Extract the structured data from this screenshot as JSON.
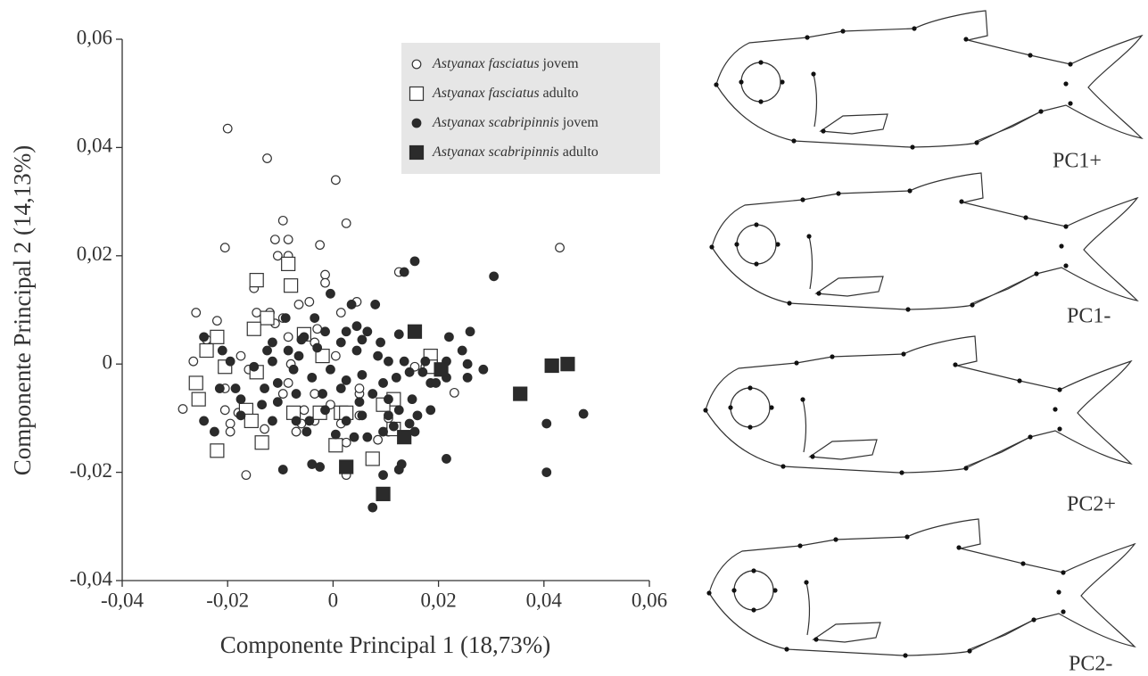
{
  "chart_data": {
    "type": "scatter",
    "xlabel": "Componente Principal 1 (18,73%)",
    "ylabel": "Componente Principal 2 (14,13%)",
    "xlim": [
      -0.04,
      0.06
    ],
    "ylim": [
      -0.04,
      0.06
    ],
    "xticks": [
      {
        "value": -0.04,
        "label": "-0,04"
      },
      {
        "value": -0.02,
        "label": "-0,02"
      },
      0,
      {
        "value": 0.02,
        "label": "0,02"
      },
      {
        "value": 0.04,
        "label": "0,04"
      },
      {
        "value": 0.06,
        "label": "0,06"
      }
    ],
    "yticks": [
      {
        "value": -0.04,
        "label": "-0,04"
      },
      {
        "value": -0.02,
        "label": "-0,02"
      },
      0,
      {
        "value": 0.02,
        "label": "0,02"
      },
      {
        "value": 0.04,
        "label": "0,04"
      },
      {
        "value": 0.06,
        "label": "0,06"
      }
    ],
    "legend": "upper right",
    "series": [
      {
        "name": "Astyanax fasciatus jovem",
        "marker": "circle",
        "color": "#ffffff",
        "edgecolor": "#333333",
        "x": [
          -0.02,
          -0.0125,
          0.0005,
          0.0025,
          -0.0095,
          -0.0205,
          -0.011,
          -0.0085,
          -0.0105,
          -0.0085,
          -0.0025,
          0.043,
          0.0125,
          -0.0015,
          -0.0015,
          -0.015,
          -0.0065,
          0.0045,
          -0.026,
          -0.0145,
          -0.012,
          -0.022,
          -0.0095,
          -0.0045,
          -0.011,
          0.0015,
          -0.003,
          -0.024,
          -0.0175,
          -0.0265,
          -0.0085,
          -0.0035,
          0.0005,
          -0.008,
          -0.016,
          -0.0085,
          -0.0095,
          -0.0035,
          0.005,
          -0.0285,
          -0.0205,
          -0.018,
          -0.0055,
          0.005,
          -0.006,
          -0.0035,
          -0.0195,
          -0.0195,
          -0.007,
          0.0015,
          -0.013,
          0.0025,
          -0.0165,
          0.0025,
          0.0085,
          0.0105,
          0.0175,
          0.023,
          0.005,
          -0.0005,
          0.0105,
          -0.0205,
          0.0155
        ],
        "values": [
          0.0435,
          0.038,
          0.034,
          0.026,
          0.0265,
          0.0215,
          0.023,
          0.023,
          0.02,
          0.02,
          0.022,
          0.0215,
          0.017,
          0.0165,
          0.015,
          0.014,
          0.011,
          0.0115,
          0.0095,
          0.0095,
          0.0095,
          0.008,
          0.0085,
          0.0115,
          0.0075,
          0.0095,
          0.0065,
          0.0045,
          0.0015,
          0.0005,
          0.005,
          0.004,
          0.0015,
          0,
          -0.001,
          -0.0035,
          -0.0055,
          -0.0055,
          -0.0055,
          -0.0083,
          -0.0085,
          -0.009,
          -0.0085,
          -0.0095,
          -0.011,
          -0.0105,
          -0.011,
          -0.0125,
          -0.0125,
          -0.011,
          -0.012,
          -0.0145,
          -0.0205,
          -0.0205,
          -0.014,
          -0.01,
          -0.0005,
          -0.0053,
          -0.0045,
          -0.0075,
          -0.0125,
          -0.0045,
          -0.0005
        ]
      },
      {
        "name": "Astyanax fasciatus adulto",
        "marker": "square",
        "color": "#ffffff",
        "edgecolor": "#333333",
        "x": [
          -0.0085,
          -0.0145,
          -0.008,
          -0.0125,
          -0.015,
          -0.0055,
          -0.022,
          -0.024,
          -0.002,
          -0.0205,
          -0.0145,
          -0.026,
          -0.0255,
          -0.0165,
          -0.0075,
          -0.0025,
          0.0015,
          0.0025,
          -0.0155,
          0.0115,
          0.0095,
          -0.0135,
          0.0005,
          -0.022,
          0.0075,
          0.0115,
          0.0185,
          0.0185
        ],
        "values": [
          0.0185,
          0.0155,
          0.0145,
          0.0085,
          0.0065,
          0.0055,
          0.005,
          0.0025,
          0.0015,
          -0.0005,
          -0.0015,
          -0.0035,
          -0.0065,
          -0.0085,
          -0.009,
          -0.009,
          -0.009,
          -0.009,
          -0.0105,
          -0.0065,
          -0.0075,
          -0.0145,
          -0.015,
          -0.016,
          -0.0175,
          -0.012,
          0.0015,
          -0.0005
        ]
      },
      {
        "name": "Astyanax scabripinnis jovem",
        "marker": "circle",
        "color": "#2b2b2b",
        "edgecolor": "#2b2b2b",
        "x": [
          0.0155,
          0.0305,
          0.0135,
          -0.0005,
          0.008,
          0.0035,
          0.0045,
          0.0025,
          0.0065,
          0.0055,
          0.0125,
          0.009,
          0.0015,
          -0.0035,
          -0.0055,
          -0.009,
          -0.0115,
          -0.006,
          -0.0015,
          -0.0065,
          -0.0085,
          -0.0125,
          -0.0115,
          -0.015,
          -0.0195,
          -0.0245,
          -0.021,
          -0.003,
          0.0045,
          0.0085,
          0.0105,
          0.0135,
          0.0175,
          0.0215,
          0.0245,
          0.026,
          0.022,
          0.0255,
          0.0285,
          0.0255,
          0.0215,
          0.0185,
          0.017,
          0.0145,
          0.012,
          0.0095,
          0.0055,
          0.0025,
          -0.0005,
          -0.004,
          -0.0075,
          -0.0105,
          -0.013,
          -0.0185,
          -0.0215,
          -0.0175,
          -0.0135,
          -0.0105,
          -0.007,
          -0.002,
          0.0015,
          0.005,
          0.0075,
          0.0105,
          0.015,
          0.0195,
          0.0185,
          0.016,
          0.0125,
          0.0105,
          0.0055,
          0.0025,
          -0.0015,
          -0.0045,
          -0.007,
          -0.0115,
          -0.0175,
          -0.0245,
          -0.0225,
          0.0155,
          0.0115,
          0.0095,
          0.0065,
          0.004,
          0.0005,
          -0.005,
          -0.004,
          -0.0025,
          -0.0095,
          0.0125,
          0.0215,
          0.0075,
          0.0095,
          0.0405,
          0.0405,
          0.0475,
          0.0145,
          0.013
        ],
        "values": [
          0.019,
          0.0162,
          0.017,
          0.013,
          0.011,
          0.011,
          0.007,
          0.006,
          0.006,
          0.0045,
          0.0055,
          0.004,
          0.004,
          0.0085,
          0.005,
          0.0085,
          0.004,
          0.0045,
          0.006,
          0.0015,
          0.0025,
          0.0025,
          0.0005,
          -0.0005,
          0.0005,
          0.005,
          0.0025,
          0.003,
          0.0025,
          0.0015,
          0.0005,
          0.0005,
          0.0005,
          0.0005,
          0.0025,
          0.006,
          0.005,
          0,
          -0.001,
          -0.0025,
          -0.0025,
          -0.0035,
          -0.0015,
          -0.0015,
          -0.0025,
          -0.0035,
          -0.002,
          -0.003,
          -0.001,
          -0.0025,
          -0.001,
          -0.0035,
          -0.0045,
          -0.0045,
          -0.0045,
          -0.0065,
          -0.0075,
          -0.007,
          -0.0055,
          -0.0055,
          -0.0045,
          -0.007,
          -0.0055,
          -0.0065,
          -0.0065,
          -0.0035,
          -0.0085,
          -0.0095,
          -0.0085,
          -0.0095,
          -0.0095,
          -0.0105,
          -0.0085,
          -0.0105,
          -0.0105,
          -0.0105,
          -0.0095,
          -0.0105,
          -0.0125,
          -0.0125,
          -0.0115,
          -0.0125,
          -0.0135,
          -0.0135,
          -0.013,
          -0.0125,
          -0.0185,
          -0.019,
          -0.0195,
          -0.0195,
          -0.0175,
          -0.0265,
          -0.0205,
          -0.011,
          -0.02,
          -0.0092,
          -0.011,
          -0.0185
        ]
      },
      {
        "name": "Astyanax scabripinnis adulto",
        "marker": "square",
        "color": "#2b2b2b",
        "edgecolor": "#2b2b2b",
        "x": [
          0.0155,
          0.0205,
          0.0415,
          0.0445,
          0.0355,
          0.0135,
          0.0025,
          0.0095
        ],
        "values": [
          0.006,
          -0.001,
          -0.0003,
          0,
          -0.0055,
          -0.0135,
          -0.019,
          -0.024
        ]
      }
    ]
  },
  "shape_labels": [
    "PC1+",
    "PC1-",
    "PC2+",
    "PC2-"
  ]
}
